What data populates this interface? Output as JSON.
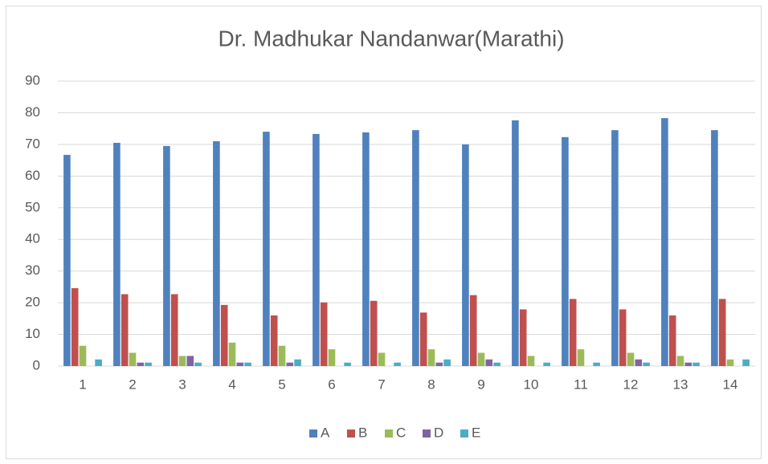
{
  "chart_data": {
    "type": "bar",
    "title": "Dr. Madhukar Nandanwar(Marathi)",
    "categories": [
      "1",
      "2",
      "3",
      "4",
      "5",
      "6",
      "7",
      "8",
      "9",
      "10",
      "11",
      "12",
      "13",
      "14"
    ],
    "series": [
      {
        "name": "A",
        "color": "#4f81bd",
        "values": [
          66.7,
          70.5,
          69.5,
          71,
          74,
          73.3,
          73.8,
          74.5,
          70,
          77.6,
          72.3,
          74.5,
          78.3,
          74.5
        ]
      },
      {
        "name": "B",
        "color": "#c0504d",
        "values": [
          24.6,
          22.7,
          22.7,
          19.3,
          16,
          20.1,
          20.6,
          16.9,
          22.4,
          17.9,
          21.2,
          17.9,
          16,
          21.2
        ]
      },
      {
        "name": "C",
        "color": "#9bbb59",
        "values": [
          6.4,
          4.2,
          3.2,
          7.4,
          6.4,
          5.3,
          4.2,
          5.3,
          4.2,
          3.2,
          5.3,
          4.2,
          3.2,
          2.1
        ]
      },
      {
        "name": "D",
        "color": "#8064a2",
        "values": [
          0,
          1.1,
          3.2,
          1.1,
          1.1,
          0,
          0,
          1.1,
          2.1,
          0,
          0,
          2.1,
          1.1,
          0
        ]
      },
      {
        "name": "E",
        "color": "#4bacc6",
        "values": [
          2.1,
          1.1,
          1.1,
          1.1,
          2.1,
          1.1,
          1.1,
          2.1,
          1.1,
          1.1,
          1.1,
          1.1,
          1.1,
          2.1
        ]
      }
    ],
    "ylim": [
      0,
      90
    ],
    "yticks": [
      0,
      10,
      20,
      30,
      40,
      50,
      60,
      70,
      80,
      90
    ],
    "grid": true,
    "legend": "bottom"
  }
}
